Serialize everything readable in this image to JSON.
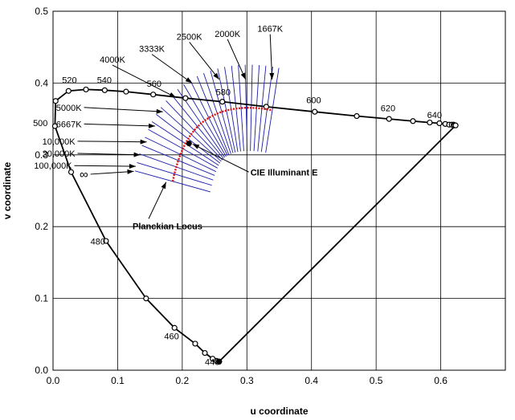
{
  "chart_data": {
    "type": "scatter",
    "xlabel": "u coordinate",
    "ylabel": "v coordinate",
    "xlim": [
      0,
      0.7
    ],
    "ylim": [
      0,
      0.5
    ],
    "xticks": [
      "0.0",
      "0.1",
      "0.2",
      "0.3",
      "0.4",
      "0.5",
      "0.6"
    ],
    "yticks": [
      "0.0",
      "0.1",
      "0.2",
      "0.3",
      "0.4",
      "0.5"
    ],
    "grid": true,
    "spectral_locus": {
      "u": [
        0.257,
        0.253,
        0.247,
        0.235,
        0.22,
        0.188,
        0.144,
        0.082,
        0.028,
        0.003,
        0.004,
        0.024,
        0.051,
        0.08,
        0.113,
        0.155,
        0.205,
        0.262,
        0.33,
        0.405,
        0.47,
        0.52,
        0.557,
        0.583,
        0.598,
        0.607,
        0.613,
        0.617,
        0.62,
        0.621,
        0.623
      ],
      "v": [
        0.012,
        0.013,
        0.016,
        0.024,
        0.037,
        0.059,
        0.1,
        0.18,
        0.276,
        0.34,
        0.375,
        0.389,
        0.391,
        0.39,
        0.388,
        0.384,
        0.379,
        0.374,
        0.367,
        0.36,
        0.354,
        0.35,
        0.347,
        0.345,
        0.344,
        0.343,
        0.342,
        0.342,
        0.342,
        0.341,
        0.341
      ]
    },
    "wavelength_labels": [
      {
        "text": "440",
        "u": 0.235,
        "v": 0.007
      },
      {
        "text": "460",
        "u": 0.172,
        "v": 0.043
      },
      {
        "text": "480",
        "u": 0.058,
        "v": 0.175
      },
      {
        "text": "500",
        "u": -0.031,
        "v": 0.34
      },
      {
        "text": "520",
        "u": 0.014,
        "v": 0.4
      },
      {
        "text": "540",
        "u": 0.068,
        "v": 0.4
      },
      {
        "text": "560",
        "u": 0.145,
        "v": 0.395
      },
      {
        "text": "580",
        "u": 0.252,
        "v": 0.383
      },
      {
        "text": "600",
        "u": 0.392,
        "v": 0.372
      },
      {
        "text": "620",
        "u": 0.507,
        "v": 0.361
      },
      {
        "text": "640",
        "u": 0.579,
        "v": 0.351
      }
    ],
    "planckian_locus": {
      "u": [
        0.1852,
        0.1878,
        0.1907,
        0.1938,
        0.1972,
        0.2009,
        0.2048,
        0.2091,
        0.2136,
        0.2185,
        0.2237,
        0.2292,
        0.235,
        0.2411,
        0.2475,
        0.2542,
        0.2611,
        0.2683,
        0.2757,
        0.2833,
        0.291,
        0.2989,
        0.3069,
        0.315,
        0.3231,
        0.3312,
        0.3393
      ],
      "v": [
        0.263,
        0.2734,
        0.2831,
        0.2922,
        0.3006,
        0.3085,
        0.3157,
        0.3224,
        0.3285,
        0.3341,
        0.3392,
        0.3438,
        0.3479,
        0.3516,
        0.3548,
        0.3575,
        0.3599,
        0.3618,
        0.3633,
        0.3644,
        0.3651,
        0.3655,
        0.3655,
        0.3651,
        0.3644,
        0.3634,
        0.362
      ]
    },
    "isotherm_half_length": 0.06,
    "illuminant_e": {
      "label": "CIE Illuminant E",
      "u": 0.2105,
      "v": 0.3158
    },
    "locus_label": "Planckian Locus",
    "cct_labels": [
      {
        "text": "1667K",
        "point": [
          0.336,
          0.468
        ],
        "tip": [
          0.339,
          0.405
        ]
      },
      {
        "text": "2000K",
        "point": [
          0.27,
          0.461
        ],
        "tip": [
          0.298,
          0.405
        ]
      },
      {
        "text": "2500K",
        "point": [
          0.211,
          0.457
        ],
        "tip": [
          0.257,
          0.405
        ]
      },
      {
        "text": "3333K",
        "point": [
          0.153,
          0.44
        ],
        "tip": [
          0.215,
          0.4
        ]
      },
      {
        "text": "4000K",
        "point": [
          0.092,
          0.425
        ],
        "tip": [
          0.19,
          0.38
        ]
      },
      {
        "text": "5000K",
        "point": [
          0.048,
          0.366
        ],
        "tip": [
          0.17,
          0.36
        ]
      },
      {
        "text": "6667K",
        "point": [
          0.048,
          0.343
        ],
        "tip": [
          0.158,
          0.34
        ]
      },
      {
        "text": "10,000K",
        "point": [
          0.038,
          0.319
        ],
        "tip": [
          0.145,
          0.318
        ]
      },
      {
        "text": "20,000K",
        "point": [
          0.038,
          0.302
        ],
        "tip": [
          0.135,
          0.3
        ]
      },
      {
        "text": "100,000K",
        "point": [
          0.033,
          0.285
        ],
        "tip": [
          0.128,
          0.284
        ]
      },
      {
        "text": "∞",
        "point": [
          0.058,
          0.273
        ],
        "tip": [
          0.125,
          0.277
        ]
      }
    ],
    "annotations": [
      {
        "text": "CIE Illuminant E",
        "point": [
          0.303,
          0.276
        ],
        "tip": [
          0.216,
          0.315
        ]
      },
      {
        "text": "Planckian Locus",
        "point": [
          0.148,
          0.211
        ],
        "tip": [
          0.175,
          0.262
        ]
      }
    ]
  }
}
